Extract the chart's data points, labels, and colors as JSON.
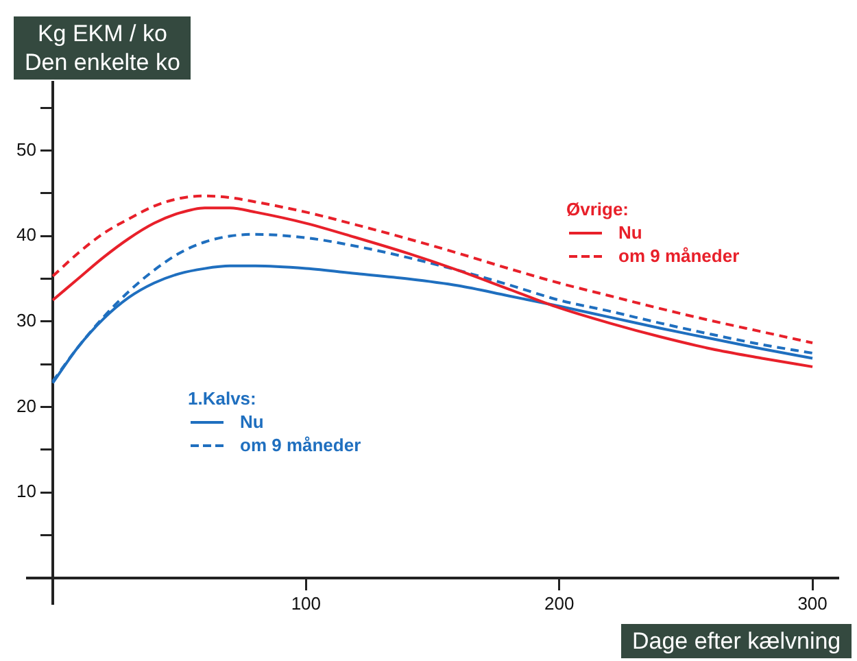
{
  "chart_data": {
    "type": "line",
    "ylabel": "Kg EKM / ko\nDen enkelte ko",
    "xlabel": "Dage efter kælvning",
    "xlim": [
      -10,
      310
    ],
    "xticks": [
      100,
      200,
      300
    ],
    "ylim": [
      -3,
      58
    ],
    "yticks": [
      {
        "value": 5,
        "label": null
      },
      10,
      {
        "value": 15,
        "label": null
      },
      20,
      {
        "value": 25,
        "label": null
      },
      30,
      {
        "value": 35,
        "label": null
      },
      40,
      {
        "value": 45,
        "label": null
      },
      50,
      {
        "value": 55,
        "label": null
      }
    ],
    "x": [
      0,
      10,
      20,
      30,
      40,
      50,
      60,
      70,
      80,
      100,
      120,
      140,
      160,
      180,
      200,
      220,
      240,
      260,
      280,
      300
    ],
    "series": [
      {
        "name": "Nu",
        "color": "#e8202a",
        "line_style": "solid",
        "values": [
          32.5,
          35,
          37.5,
          39.7,
          41.5,
          42.7,
          43.3,
          43.3,
          42.8,
          41.5,
          39.8,
          38,
          36,
          33.8,
          31.6,
          29.8,
          28.2,
          26.8,
          25.7,
          24.7
        ]
      },
      {
        "name": "om 9 måneder",
        "color": "#e8202a",
        "line_style": "dashed",
        "values": [
          35.3,
          38,
          40.3,
          42,
          43.5,
          44.4,
          44.7,
          44.5,
          44,
          42.8,
          41.3,
          39.7,
          38,
          36.2,
          34.5,
          33,
          31.5,
          30.1,
          28.8,
          27.5
        ]
      },
      {
        "name": "Nu",
        "color": "#1f6fbf",
        "line_style": "solid",
        "values": [
          22.8,
          27,
          30.3,
          32.8,
          34.5,
          35.6,
          36.2,
          36.5,
          36.5,
          36.2,
          35.6,
          35,
          34.2,
          33,
          31.8,
          30.5,
          29.2,
          28,
          26.8,
          25.7
        ]
      },
      {
        "name": "om 9 måneder",
        "color": "#1f6fbf",
        "line_style": "dashed",
        "values": [
          23,
          27,
          30.5,
          33.5,
          36,
          38,
          39.3,
          40,
          40.2,
          39.8,
          38.8,
          37.5,
          36,
          34.3,
          32.5,
          31.2,
          29.8,
          28.5,
          27.3,
          26.3
        ]
      }
    ],
    "annotations": [
      "Øvrige:",
      "1.Kalvs:"
    ],
    "legend": "right",
    "grid": false,
    "marker": "none"
  }
}
